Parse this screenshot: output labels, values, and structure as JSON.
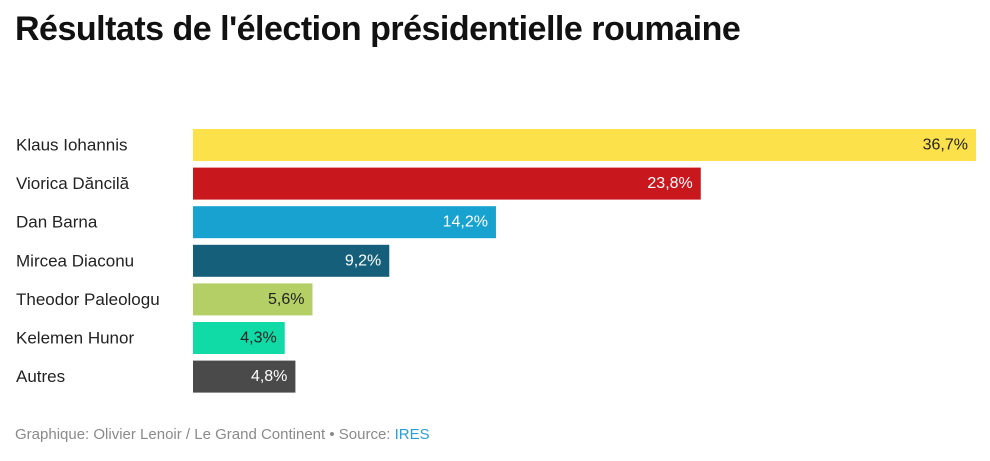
{
  "title": "Résultats de l'élection présidentielle roumaine",
  "footer": {
    "credit": "Graphique: Olivier Lenoir / Le Grand Continent • Source: ",
    "source": "IRES"
  },
  "chart_data": {
    "type": "bar",
    "orientation": "horizontal",
    "categories": [
      "Klaus Iohannis",
      "Viorica Dăncilă",
      "Dan Barna",
      "Mircea Diaconu",
      "Theodor Paleologu",
      "Kelemen Hunor",
      "Autres"
    ],
    "values": [
      36.7,
      23.8,
      14.2,
      9.2,
      5.6,
      4.3,
      4.8
    ],
    "value_labels": [
      "36,7%",
      "23,8%",
      "14,2%",
      "9,2%",
      "5,6%",
      "4,3%",
      "4,8%"
    ],
    "colors": [
      "#fde14a",
      "#c8181e",
      "#17a2cf",
      "#155f7a",
      "#b3cf65",
      "#10dba6",
      "#4a4a4a"
    ],
    "label_colors": [
      "#222222",
      "#ffffff",
      "#ffffff",
      "#ffffff",
      "#222222",
      "#222222",
      "#ffffff"
    ],
    "xlim": [
      0,
      36.7
    ],
    "xlabel": "",
    "ylabel": "",
    "grid": false,
    "legend": "none"
  }
}
